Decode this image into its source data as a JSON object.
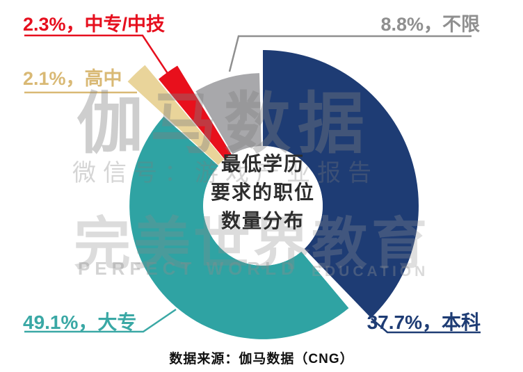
{
  "chart_data": {
    "type": "pie",
    "donut": true,
    "title": "最低学历要求的职位数量分布",
    "unit": "%",
    "slices": [
      {
        "label": "本科",
        "value": 37.7,
        "color": "#1e3c74"
      },
      {
        "label": "大专",
        "value": 49.1,
        "color": "#2fa3a3"
      },
      {
        "label": "高中",
        "value": 2.1,
        "color": "#e9d49a"
      },
      {
        "label": "中专/中技",
        "value": 2.3,
        "color": "#e8101c"
      },
      {
        "label": "不限",
        "value": 8.8,
        "color": "#a8a8ab"
      }
    ],
    "legend_position": "callouts",
    "grid": false
  },
  "callouts": {
    "zhongzhuan": {
      "text": "2.3%，中专/中技",
      "color": "#e60f1e"
    },
    "gaozhong": {
      "text": "2.1%，高中",
      "color": "#d9b975"
    },
    "buxian": {
      "text": "8.8%，不限",
      "color": "#8f8f8f"
    },
    "dazhuan": {
      "text": "49.1%，大专",
      "color": "#3aa8a5"
    },
    "benke": {
      "text": "37.7%，本科",
      "color": "#1e3c74"
    }
  },
  "center_title": {
    "line1": "最低学历",
    "line2": "要求的职位",
    "line3": "数量分布"
  },
  "watermarks": {
    "gamma": "伽马数据",
    "wechat": "微信号：游戏产业报告",
    "perfect_world": "完美世界",
    "perfect_world_en": "PERFECT WORLD",
    "education": "教育",
    "education_en": "EDUCATION"
  },
  "source": "数据来源：伽马数据（CNG）"
}
